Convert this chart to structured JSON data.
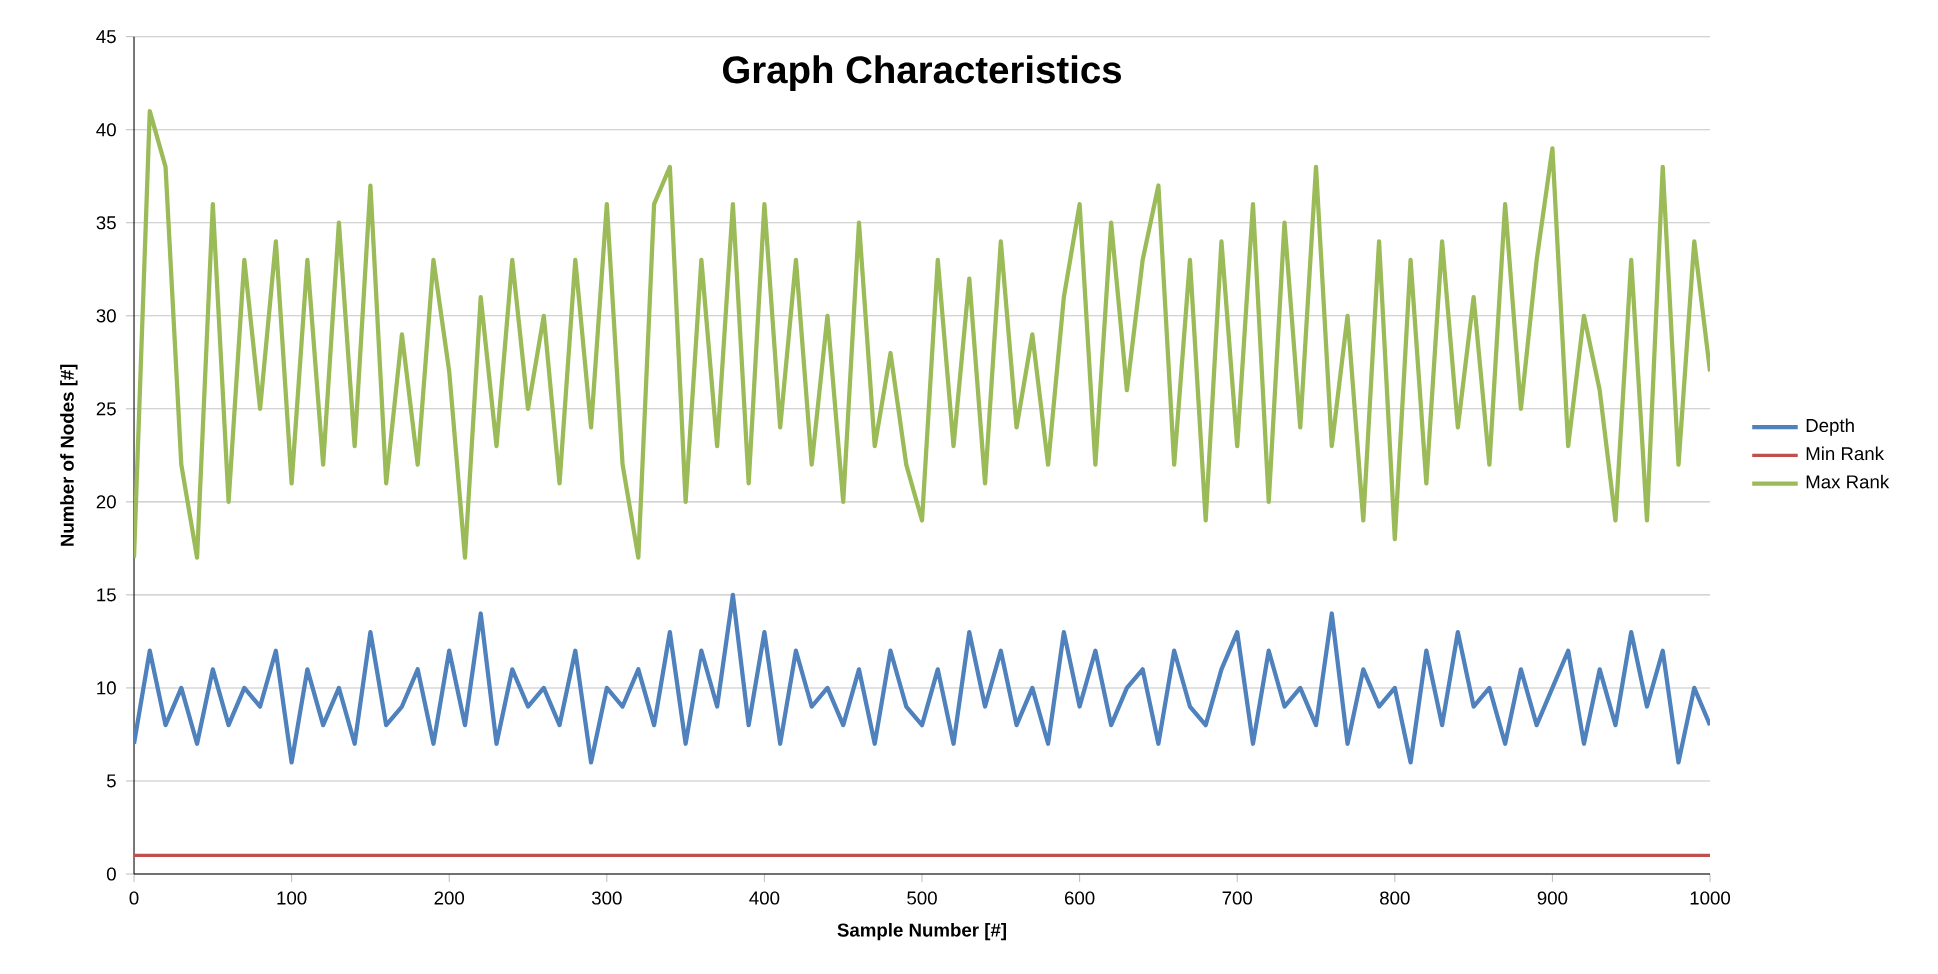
{
  "chart_data": {
    "type": "line",
    "title": "Graph Characteristics",
    "xlabel": "Sample Number [#]",
    "ylabel": "Number of Nodes [#]",
    "x": [
      0,
      10,
      20,
      30,
      40,
      50,
      60,
      70,
      80,
      90,
      100,
      110,
      120,
      130,
      140,
      150,
      160,
      170,
      180,
      190,
      200,
      210,
      220,
      230,
      240,
      250,
      260,
      270,
      280,
      290,
      300,
      310,
      320,
      330,
      340,
      350,
      360,
      370,
      380,
      390,
      400,
      410,
      420,
      430,
      440,
      450,
      460,
      470,
      480,
      490,
      500,
      510,
      520,
      530,
      540,
      550,
      560,
      570,
      580,
      590,
      600,
      610,
      620,
      630,
      640,
      650,
      660,
      670,
      680,
      690,
      700,
      710,
      720,
      730,
      740,
      750,
      760,
      770,
      780,
      790,
      800,
      810,
      820,
      830,
      840,
      850,
      860,
      870,
      880,
      890,
      900,
      910,
      920,
      930,
      940,
      950,
      960,
      970,
      980,
      990,
      1000
    ],
    "series": [
      {
        "name": "Depth",
        "color": "#4f81bd",
        "values": [
          7,
          12,
          8,
          10,
          7,
          11,
          8,
          10,
          9,
          12,
          6,
          11,
          8,
          10,
          7,
          13,
          8,
          9,
          11,
          7,
          12,
          8,
          14,
          7,
          11,
          9,
          10,
          8,
          12,
          6,
          10,
          9,
          11,
          8,
          13,
          7,
          12,
          9,
          15,
          8,
          13,
          7,
          12,
          9,
          10,
          8,
          11,
          7,
          12,
          9,
          8,
          11,
          7,
          13,
          9,
          12,
          8,
          10,
          7,
          13,
          9,
          12,
          8,
          10,
          11,
          7,
          12,
          9,
          8,
          11,
          13,
          7,
          12,
          9,
          10,
          8,
          14,
          7,
          11,
          9,
          10,
          6,
          12,
          8,
          13,
          9,
          10,
          7,
          11,
          8,
          10,
          12,
          7,
          11,
          8,
          13,
          9,
          12,
          6,
          10,
          8
        ]
      },
      {
        "name": "Min Rank",
        "color": "#c0504d",
        "x": [
          0,
          1000
        ],
        "values": [
          1,
          1
        ]
      },
      {
        "name": "Max Rank",
        "color": "#9bbb59",
        "values": [
          17,
          41,
          38,
          22,
          17,
          36,
          20,
          33,
          25,
          34,
          21,
          33,
          22,
          35,
          23,
          37,
          21,
          29,
          22,
          33,
          27,
          17,
          31,
          23,
          33,
          25,
          30,
          21,
          33,
          24,
          36,
          22,
          17,
          36,
          38,
          20,
          33,
          23,
          36,
          21,
          36,
          24,
          33,
          22,
          30,
          20,
          35,
          23,
          28,
          22,
          19,
          33,
          23,
          32,
          21,
          34,
          24,
          29,
          22,
          31,
          36,
          22,
          35,
          26,
          33,
          37,
          22,
          33,
          19,
          34,
          23,
          36,
          20,
          35,
          24,
          38,
          23,
          30,
          19,
          34,
          18,
          33,
          21,
          34,
          24,
          31,
          22,
          36,
          25,
          33,
          39,
          23,
          30,
          26,
          19,
          33,
          19,
          38,
          22,
          34,
          27
        ]
      }
    ],
    "xlim": [
      0,
      1000
    ],
    "xticks": [
      0,
      100,
      200,
      300,
      400,
      500,
      600,
      700,
      800,
      900,
      1000
    ],
    "ylim": [
      0,
      45
    ],
    "yticks": [
      0,
      5,
      10,
      15,
      20,
      25,
      30,
      35,
      40,
      45
    ],
    "grid": "y",
    "legend": "right",
    "marker": "none",
    "line_style": "solid"
  }
}
